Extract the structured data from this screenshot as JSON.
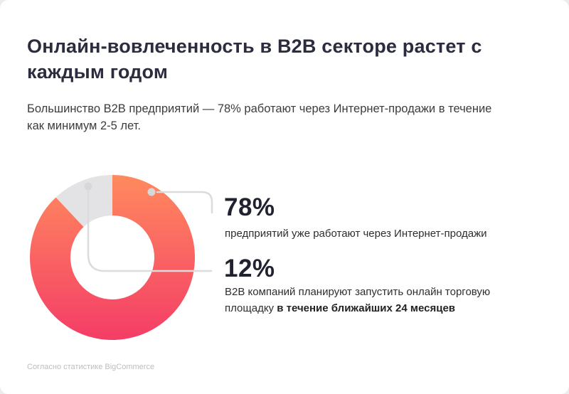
{
  "header": {
    "title": "Онлайн-вовлеченность в B2B секторе растет с каждым годом",
    "subtitle": "Большинство B2B предприятий — 78% работают через Интернет-продажи в течение как минимум 2-5 лет."
  },
  "chart_data": {
    "type": "pie",
    "donut": true,
    "legend_position": "none",
    "segments": [
      {
        "label": "предприятий уже работают через Интернет-продажи",
        "value": 78,
        "arc_percent": 88,
        "colors": [
          "#ff8a5e",
          "#f43d67"
        ]
      },
      {
        "label": "B2B компаний планируют запустить онлайн торговую площадку в течение ближайших 24 месяцев",
        "value": 12,
        "arc_percent": 12,
        "color": "#e3e3e5"
      }
    ],
    "source": "Согласно статистике BigCommerce"
  },
  "callouts": [
    {
      "value": "78%",
      "text": "предприятий уже работают через Интернет-продажи",
      "text_bold": ""
    },
    {
      "value": "12%",
      "text": "B2B компаний планируют запустить онлайн торговую площадку ",
      "text_bold": "в течение ближайших 24 месяцев"
    }
  ],
  "footer": {
    "source": "Согласно статистике BigCommerce"
  },
  "colors": {
    "title": "#2b2c3e",
    "accent_top": "#ff8a5e",
    "accent_bottom": "#f43d67",
    "gray_segment": "#e3e3e5",
    "connector": "#dcdcdd"
  }
}
